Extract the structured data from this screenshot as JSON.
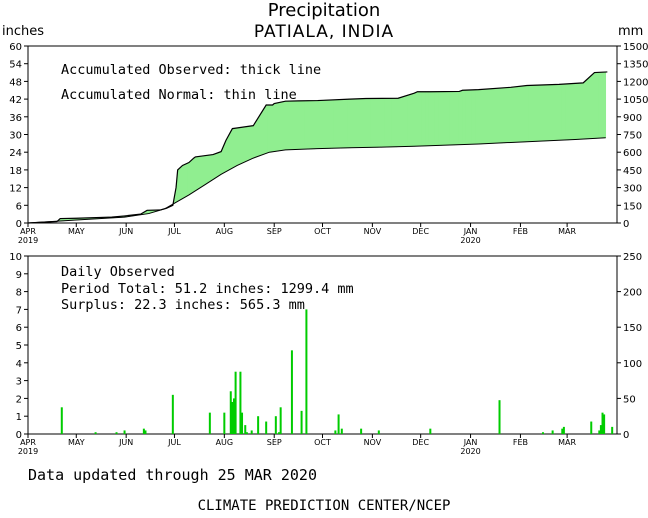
{
  "header": {
    "title": "Precipitation",
    "subtitle": "PATIALA,  INDIA",
    "unit_left": "inches",
    "unit_right": "mm"
  },
  "chart_data": [
    {
      "type": "area",
      "legend": {
        "observed": "Accumulated Observed: thick line",
        "normal": "Accumulated Normal: thin line"
      },
      "x_ticks": [
        "APR",
        "MAY",
        "JUN",
        "JUL",
        "AUG",
        "SEP",
        "OCT",
        "NOV",
        "DEC",
        "JAN",
        "FEB",
        "MAR"
      ],
      "x_ticks_year": {
        "APR": "2019",
        "JAN": "2020"
      },
      "ylim_left": [
        0,
        60
      ],
      "yticks_left": [
        0,
        6,
        12,
        18,
        24,
        30,
        36,
        42,
        48,
        54,
        60
      ],
      "ylim_right": [
        0,
        1500
      ],
      "yticks_right": [
        0,
        150,
        300,
        450,
        600,
        750,
        900,
        1050,
        1200,
        1350,
        1500
      ],
      "fill_colors": {
        "surplus": "#90ee90",
        "deficit": "#e8a898"
      },
      "series": [
        {
          "name": "Accumulated Observed",
          "x": [
            0,
            10,
            18,
            20,
            30,
            40,
            52,
            60,
            70,
            74,
            82,
            86,
            90,
            92,
            93,
            96,
            100,
            103,
            104,
            108,
            115,
            120,
            123,
            127,
            140,
            148,
            152,
            153,
            160,
            168,
            180,
            200,
            210,
            230,
            240,
            242,
            250,
            268,
            270,
            280,
            300,
            310,
            330,
            345,
            352,
            360
          ],
          "y": [
            0,
            0.3,
            0.5,
            1.5,
            1.6,
            1.8,
            2.0,
            2.4,
            3.0,
            4.3,
            4.4,
            5.0,
            6.0,
            12.0,
            18.0,
            19.5,
            20.5,
            22.0,
            22.4,
            22.7,
            23.2,
            24.2,
            28.0,
            32.0,
            33.0,
            40.0,
            40.0,
            40.5,
            41.3,
            41.4,
            41.5,
            42.0,
            42.2,
            42.3,
            44.0,
            44.5,
            44.5,
            44.6,
            45.0,
            45.2,
            46.0,
            46.6,
            47.0,
            47.5,
            51.0,
            51.2
          ]
        },
        {
          "name": "Accumulated Normal",
          "x": [
            0,
            30,
            60,
            75,
            85,
            92,
            100,
            110,
            120,
            130,
            140,
            150,
            160,
            170,
            180,
            200,
            220,
            240,
            260,
            280,
            300,
            320,
            340,
            359
          ],
          "y": [
            0,
            1.0,
            2.0,
            3.2,
            4.8,
            7.0,
            9.5,
            13.0,
            16.5,
            19.5,
            22.0,
            24.0,
            24.8,
            25.0,
            25.2,
            25.5,
            25.7,
            26.0,
            26.4,
            26.8,
            27.3,
            27.8,
            28.3,
            28.9
          ]
        }
      ]
    },
    {
      "type": "bar",
      "title_lines": [
        "Daily Observed",
        "Period Total:    51.2 inches:   1299.4 mm",
        "Surplus:    22.3 inches:   565.3 mm"
      ],
      "x_ticks": [
        "APR",
        "MAY",
        "JUN",
        "JUL",
        "AUG",
        "SEP",
        "OCT",
        "NOV",
        "DEC",
        "JAN",
        "FEB",
        "MAR"
      ],
      "x_ticks_year": {
        "APR": "2019",
        "JAN": "2020"
      },
      "ylim_left": [
        0,
        10
      ],
      "yticks_left": [
        0,
        1,
        2,
        3,
        4,
        5,
        6,
        7,
        8,
        9,
        10
      ],
      "ylim_right": [
        0,
        250
      ],
      "yticks_right": [
        0,
        50,
        100,
        150,
        200,
        250
      ],
      "bar_color": "#00cc00",
      "series": [
        {
          "name": "Daily Observed",
          "x": [
            21,
            42,
            55,
            60,
            72,
            73,
            90,
            113,
            122,
            126,
            127,
            128,
            129,
            132,
            133,
            135,
            136,
            139,
            143,
            148,
            154,
            156,
            157,
            164,
            170,
            173,
            191,
            193,
            195,
            207,
            218,
            250,
            293,
            320,
            326,
            332,
            333,
            350,
            355,
            356,
            357,
            358,
            363
          ],
          "y": [
            1.5,
            0.1,
            0.1,
            0.2,
            0.3,
            0.2,
            2.2,
            1.2,
            1.2,
            2.4,
            1.8,
            2.0,
            3.5,
            3.5,
            1.2,
            0.5,
            0.1,
            0.2,
            1.0,
            0.7,
            1.0,
            0.1,
            1.5,
            4.7,
            1.3,
            7.0,
            0.2,
            1.1,
            0.3,
            0.3,
            0.2,
            0.3,
            1.9,
            0.1,
            0.2,
            0.3,
            0.4,
            0.7,
            0.2,
            0.5,
            1.2,
            1.1,
            0.4
          ]
        }
      ]
    }
  ],
  "footer": {
    "updated": "Data updated through 25 MAR 2020",
    "credit": "CLIMATE PREDICTION CENTER/NCEP"
  }
}
